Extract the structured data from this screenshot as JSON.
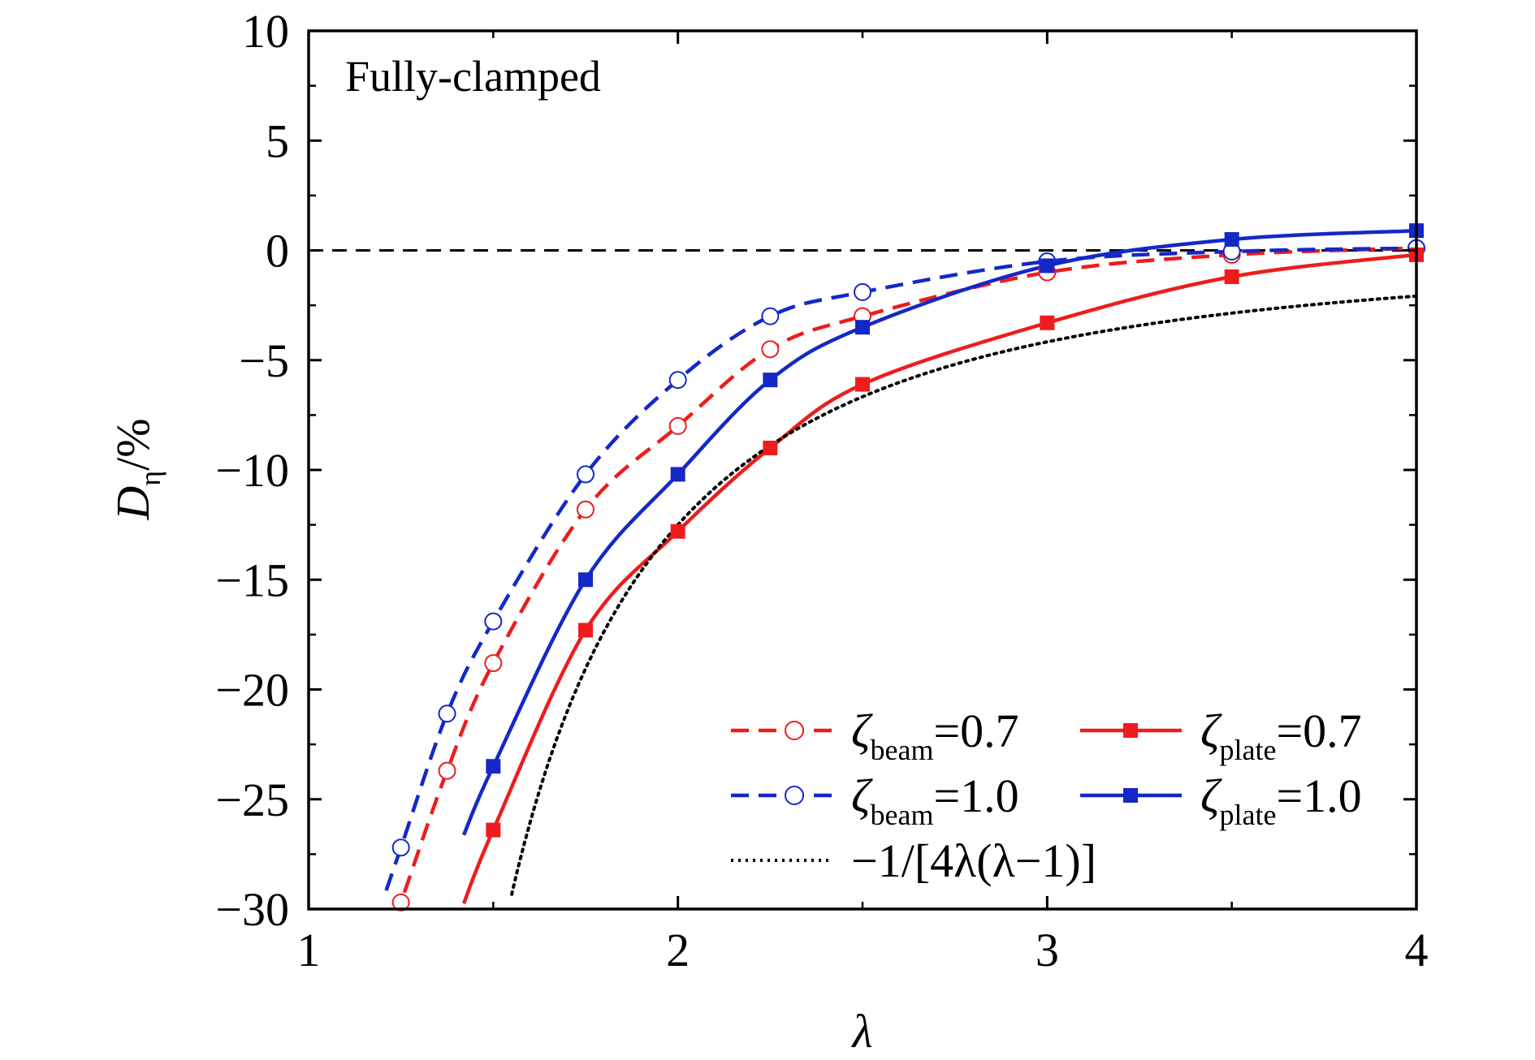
{
  "chart_data": {
    "type": "line",
    "annotation": "Fully-clamped",
    "xlabel": "λ",
    "ylabel": {
      "main": "D",
      "sub": "η",
      "suffix": "/%"
    },
    "xlim": [
      1,
      4
    ],
    "ylim": [
      -30,
      10
    ],
    "xticks": [
      1,
      2,
      3,
      4
    ],
    "yticks": [
      10,
      5,
      0,
      -5,
      -10,
      -15,
      -20,
      -25,
      -30
    ],
    "xtick_labels": [
      "1",
      "2",
      "3",
      "4"
    ],
    "ytick_labels": [
      "10",
      "5",
      "0",
      "−5",
      "−10",
      "−15",
      "−20",
      "−25",
      "−30"
    ],
    "reference_line": {
      "y": 0,
      "style": "dashed",
      "color": "#000000"
    },
    "legend_position": "lower-right",
    "colors": {
      "red": "#ee1c1c",
      "blue": "#1428c8",
      "black": "#000000"
    },
    "series": [
      {
        "name": "ζbeam=0.7",
        "legend_main": "ζ",
        "legend_sub": "beam",
        "legend_value": "=0.7",
        "color": "#ee1c1c",
        "line": "dashed",
        "marker": "open-circle",
        "x": [
          1.25,
          1.375,
          1.5,
          1.75,
          2.0,
          2.25,
          2.5,
          3.0,
          3.5,
          4.0
        ],
        "y": [
          -29.7,
          -23.7,
          -18.8,
          -11.8,
          -8.0,
          -4.5,
          -3.0,
          -1.0,
          -0.2,
          0.1
        ]
      },
      {
        "name": "ζbeam=1.0",
        "legend_main": "ζ",
        "legend_sub": "beam",
        "legend_value": "=1.0",
        "color": "#1428c8",
        "line": "dashed",
        "marker": "open-circle",
        "x": [
          1.25,
          1.375,
          1.5,
          1.75,
          2.0,
          2.25,
          2.5,
          3.0,
          3.5,
          4.0
        ],
        "y": [
          -27.2,
          -21.1,
          -16.9,
          -10.2,
          -5.9,
          -3.0,
          -1.9,
          -0.5,
          -0.05,
          0.1
        ]
      },
      {
        "name": "ζplate=0.7",
        "legend_main": "ζ",
        "legend_sub": "plate",
        "legend_value": "=0.7",
        "color": "#ee1c1c",
        "line": "solid",
        "marker": "filled-square",
        "x": [
          1.5,
          1.75,
          2.0,
          2.25,
          2.5,
          3.0,
          3.5,
          4.0
        ],
        "y": [
          -26.4,
          -17.3,
          -12.8,
          -9.0,
          -6.1,
          -3.3,
          -1.2,
          -0.2
        ]
      },
      {
        "name": "ζplate=1.0",
        "legend_main": "ζ",
        "legend_sub": "plate",
        "legend_value": "=1.0",
        "color": "#1428c8",
        "line": "solid",
        "marker": "filled-square",
        "x": [
          1.5,
          1.75,
          2.0,
          2.25,
          2.5,
          3.0,
          3.5,
          4.0
        ],
        "y": [
          -23.5,
          -15.0,
          -10.2,
          -5.9,
          -3.5,
          -0.7,
          0.5,
          0.9
        ]
      },
      {
        "name": "−1/[4λ(λ−1)]",
        "legend_label": "−1/[4λ(λ−1)]",
        "color": "#000000",
        "line": "dotted",
        "marker": "none",
        "function": "-100/(4*x*(x-1))"
      }
    ]
  }
}
